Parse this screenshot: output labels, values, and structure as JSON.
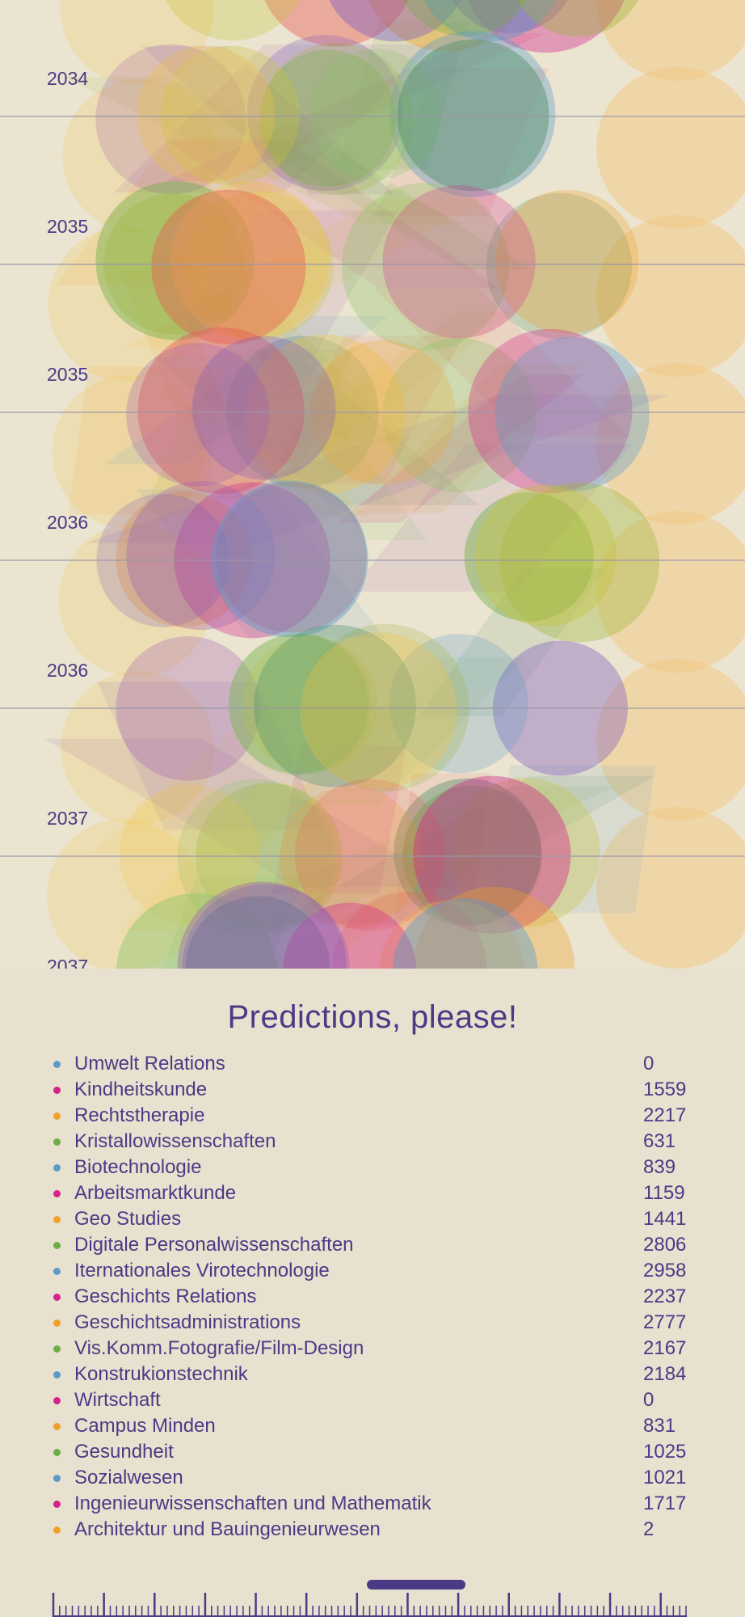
{
  "timeline": {
    "years": [
      "2034",
      "2035",
      "2035",
      "2036",
      "2036",
      "2037",
      "2037"
    ]
  },
  "panel": {
    "title": "Predictions, please!",
    "items": [
      {
        "name": "Umwelt Relations",
        "value": "0",
        "color": "#5b9bc9"
      },
      {
        "name": "Kindheitskunde",
        "value": "1559",
        "color": "#d3238a"
      },
      {
        "name": "Rechtstherapie",
        "value": "2217",
        "color": "#efa12b"
      },
      {
        "name": "Kristallowissenschaften",
        "value": "631",
        "color": "#6cae45"
      },
      {
        "name": "Biotechnologie",
        "value": "839",
        "color": "#5b9bc9"
      },
      {
        "name": "Arbeitsmarktkunde",
        "value": "1159",
        "color": "#d3238a"
      },
      {
        "name": "Geo Studies",
        "value": "1441",
        "color": "#efa12b"
      },
      {
        "name": "Digitale Personalwissenschaften",
        "value": "2806",
        "color": "#6cae45"
      },
      {
        "name": "Iternationales Virotechnologie",
        "value": "2958",
        "color": "#5b9bc9"
      },
      {
        "name": "Geschichts Relations",
        "value": "2237",
        "color": "#d3238a"
      },
      {
        "name": "Geschichtsadministrations",
        "value": "2777",
        "color": "#efa12b"
      },
      {
        "name": "Vis.Komm.Fotografie/Film-Design",
        "value": "2167",
        "color": "#6cae45"
      },
      {
        "name": "Konstrukionstechnik",
        "value": "2184",
        "color": "#5b9bc9"
      },
      {
        "name": "Wirtschaft",
        "value": "0",
        "color": "#d3238a"
      },
      {
        "name": "Campus Minden",
        "value": "831",
        "color": "#efa12b"
      },
      {
        "name": "Gesundheit",
        "value": "1025",
        "color": "#6cae45"
      },
      {
        "name": "Sozialwesen",
        "value": "1021",
        "color": "#5b9bc9"
      },
      {
        "name": "Ingenieurwissenschaften und Mathematik",
        "value": "1717",
        "color": "#d3238a"
      },
      {
        "name": "Architektur und Bauingenieurwesen",
        "value": "2",
        "color": "#efa12b"
      }
    ]
  }
}
